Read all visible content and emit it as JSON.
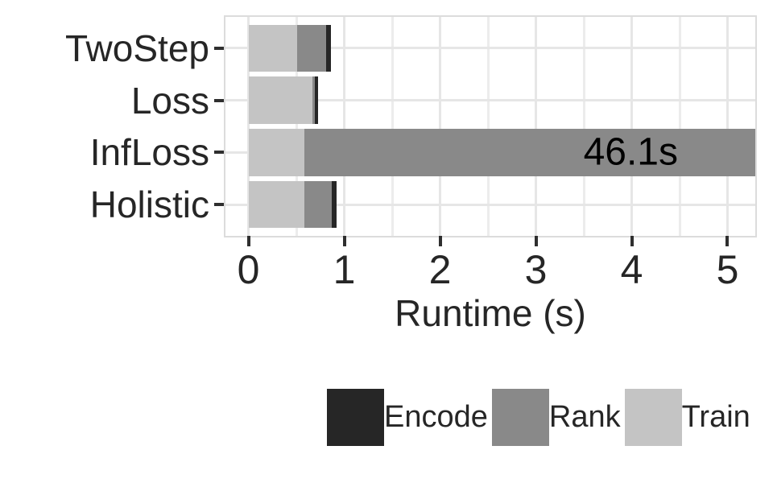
{
  "chart_data": {
    "type": "bar",
    "orientation": "horizontal",
    "stacked": true,
    "title": "",
    "xlabel": "Runtime (s)",
    "ylabel": "",
    "categories": [
      "TwoStep",
      "Loss",
      "InfLoss",
      "Holistic"
    ],
    "series": [
      {
        "name": "Train",
        "color": "#c4c4c4",
        "values": [
          0.51,
          0.67,
          0.58,
          0.58
        ]
      },
      {
        "name": "Rank",
        "color": "#898989",
        "values": [
          0.3,
          0.02,
          45.52,
          0.29
        ]
      },
      {
        "name": "Encode",
        "color": "#262626",
        "values": [
          0.05,
          0.04,
          0.0,
          0.05
        ]
      }
    ],
    "totals": [
      0.86,
      0.73,
      46.1,
      0.92
    ],
    "bar_label": {
      "category": "InfLoss",
      "text": "46.1s"
    },
    "x_ticks": [
      0,
      1,
      2,
      3,
      4,
      5
    ],
    "x_minor_gridlines": [
      0.5,
      1.5,
      2.5,
      3.5,
      4.5
    ],
    "xlim": [
      -0.24,
      5.29
    ],
    "clipped_at_xmax": true,
    "grid": true,
    "legend": {
      "position": "bottom",
      "entries": [
        {
          "label": "Encode",
          "color": "#262626"
        },
        {
          "label": "Rank",
          "color": "#898989"
        },
        {
          "label": "Train",
          "color": "#c4c4c4"
        }
      ]
    },
    "colors": {
      "gridline_major": "#e6e6e6",
      "gridline_minor": "#ececec",
      "panel_border": "#dcdcdc",
      "tick_mark": "#2f2f2f",
      "axis_text": "#262626",
      "annotation_text": "#000000"
    }
  }
}
